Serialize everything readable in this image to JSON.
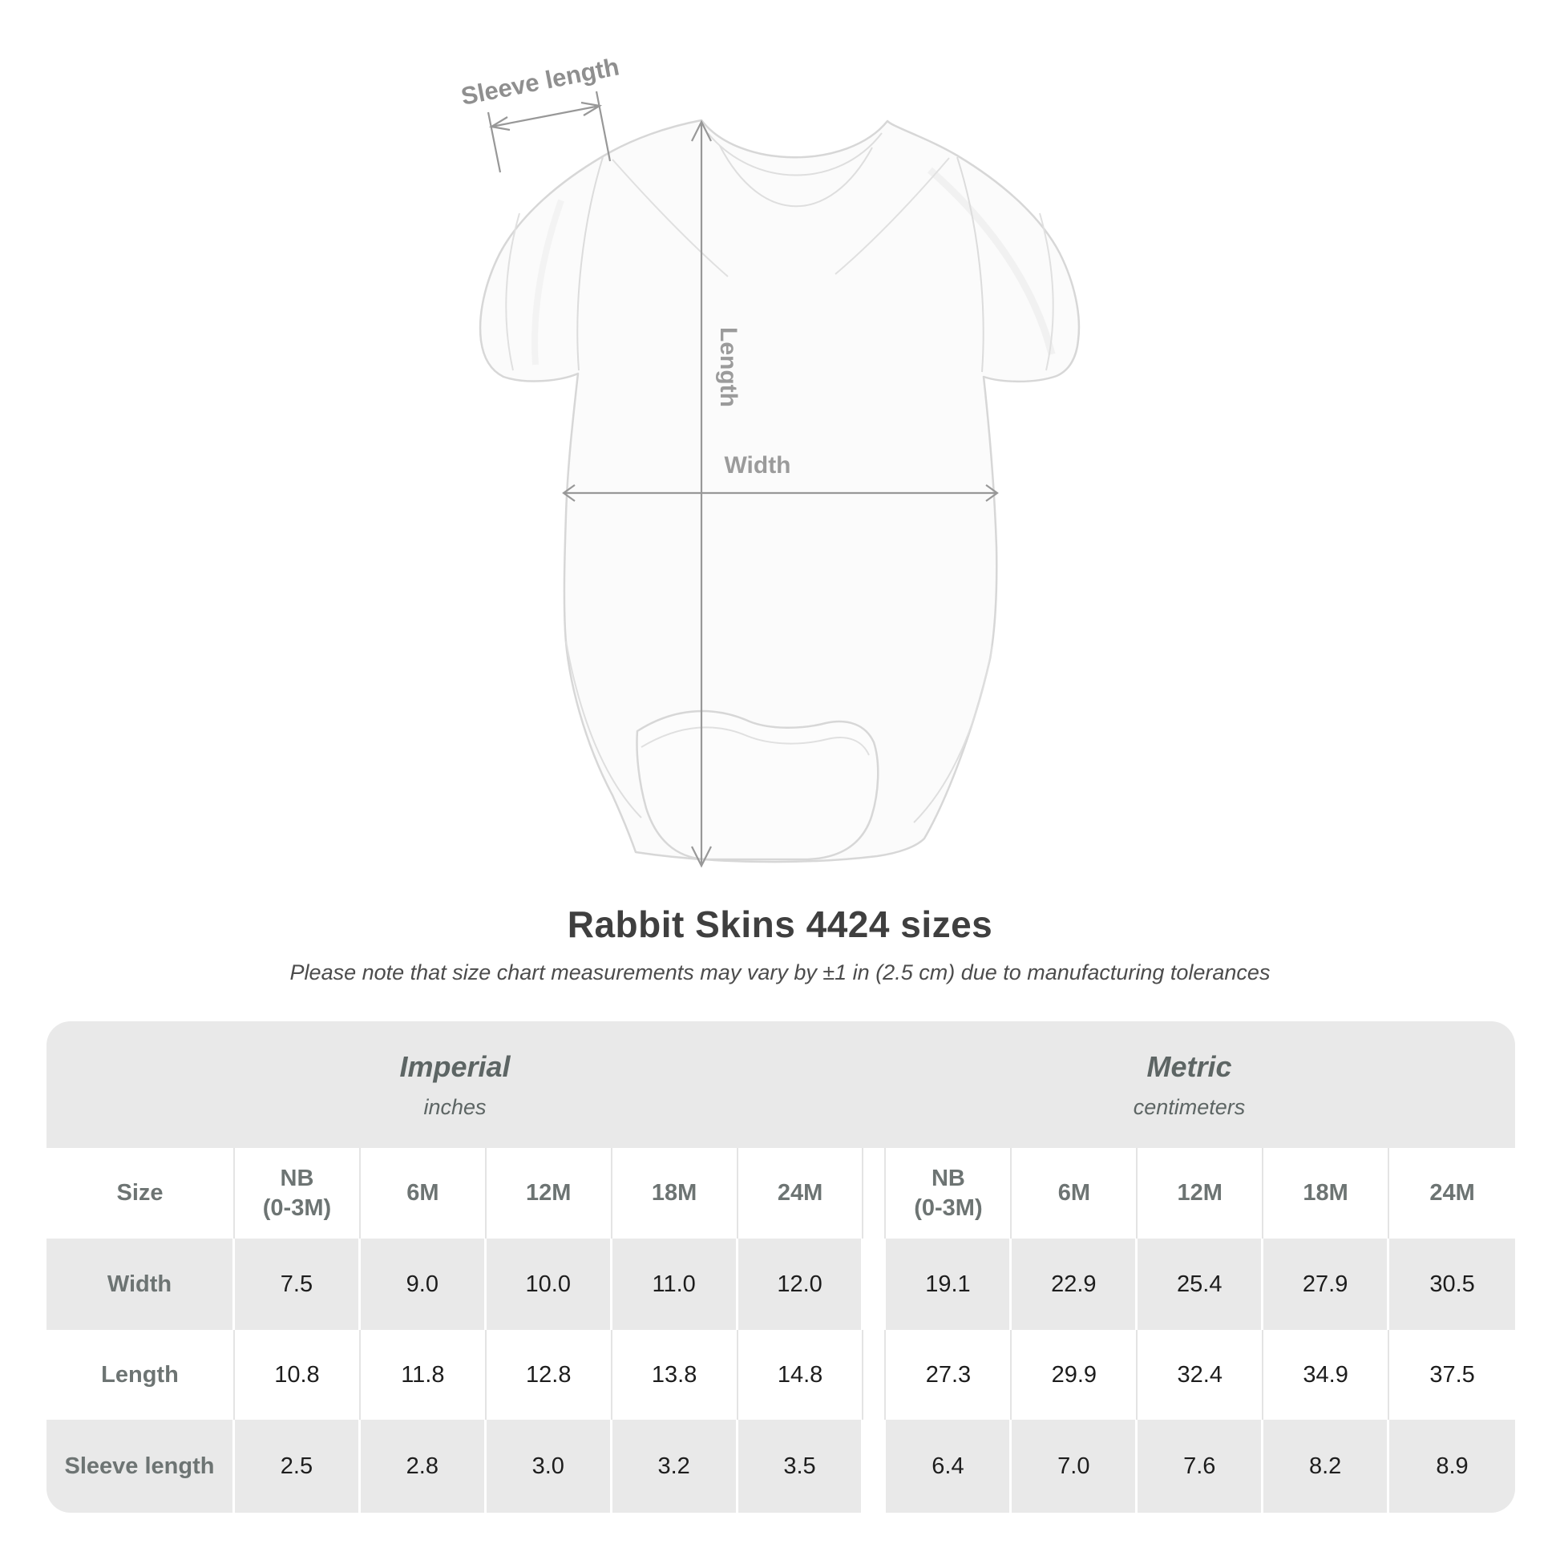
{
  "diagram": {
    "sleeve_length_label": "Sleeve length",
    "length_label": "Length",
    "width_label": "Width",
    "annotation_color": "#989898",
    "garment_outline_color": "#d9d9d9"
  },
  "title": "Rabbit Skins 4424 sizes",
  "subtitle": "Please note that size chart measurements may vary by ±1 in (2.5 cm) due to manufacturing tolerances",
  "table": {
    "groups": [
      {
        "label": "Imperial",
        "sublabel": "inches"
      },
      {
        "label": "Metric",
        "sublabel": "centimeters"
      }
    ],
    "size_header": "Size",
    "column_headers": [
      [
        "NB",
        "(0-3M)"
      ],
      [
        "6M"
      ],
      [
        "12M"
      ],
      [
        "18M"
      ],
      [
        "24M"
      ],
      [
        "NB",
        "(0-3M)"
      ],
      [
        "6M"
      ],
      [
        "12M"
      ],
      [
        "18M"
      ],
      [
        "24M"
      ]
    ],
    "rows": [
      {
        "label": "Width",
        "values": [
          "7.5",
          "9.0",
          "10.0",
          "11.0",
          "12.0",
          "19.1",
          "22.9",
          "25.4",
          "27.9",
          "30.5"
        ]
      },
      {
        "label": "Length",
        "values": [
          "10.8",
          "11.8",
          "12.8",
          "13.8",
          "14.8",
          "27.3",
          "29.9",
          "32.4",
          "34.9",
          "37.5"
        ]
      },
      {
        "label": "Sleeve length",
        "values": [
          "2.5",
          "2.8",
          "3.0",
          "3.2",
          "3.5",
          "6.4",
          "7.0",
          "7.6",
          "8.2",
          "8.9"
        ]
      }
    ],
    "gray_color": "#e9e9e9"
  }
}
